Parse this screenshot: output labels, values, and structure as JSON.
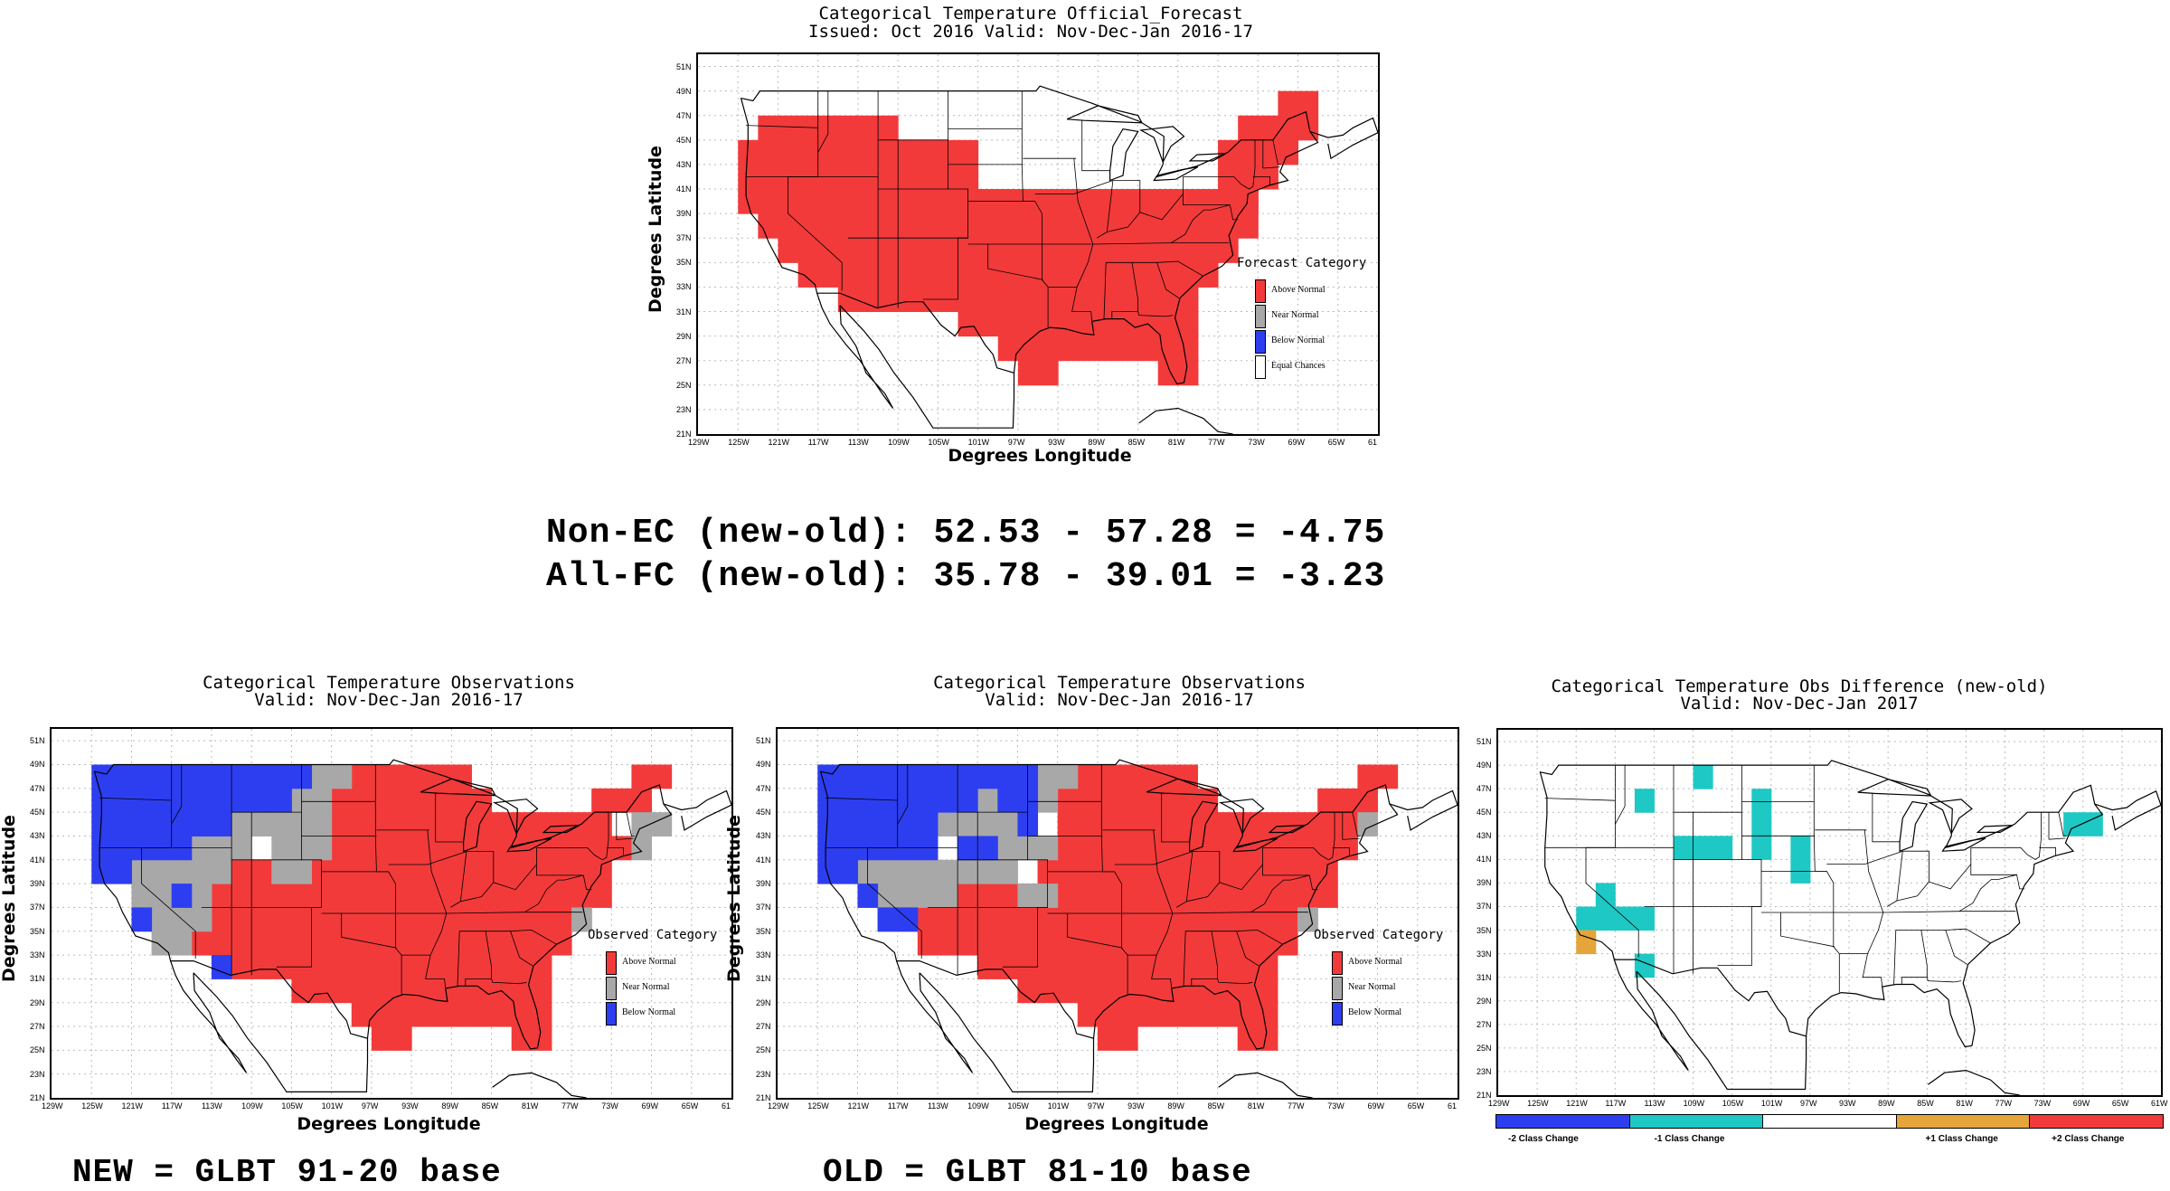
{
  "summary": {
    "line1": "Non-EC (new-old): 52.53 - 57.28 = -4.75",
    "line2": "All-FC (new-old): 35.78 - 39.01 = -3.23"
  },
  "footer": {
    "new_label": "NEW = GLBT 91-20 base",
    "old_label": "OLD = GLBT 81-10 base"
  },
  "axes": {
    "lat_ticks": [
      "51N",
      "49N",
      "47N",
      "45N",
      "43N",
      "41N",
      "39N",
      "37N",
      "35N",
      "33N",
      "31N",
      "29N",
      "27N",
      "25N",
      "23N",
      "21N"
    ],
    "lon_ticks": [
      "129W",
      "125W",
      "121W",
      "117W",
      "113W",
      "109W",
      "105W",
      "101W",
      "97W",
      "93W",
      "89W",
      "85W",
      "81W",
      "77W",
      "73W",
      "69W",
      "65W",
      "61"
    ],
    "lon_ticks_diff": [
      "129W",
      "125W",
      "121W",
      "117W",
      "113W",
      "109W",
      "105W",
      "101W",
      "97W",
      "93W",
      "89W",
      "85W",
      "81W",
      "77W",
      "73W",
      "69W",
      "65W",
      "61W"
    ]
  },
  "colors": {
    "above": "#f23a3a",
    "near": "#a8a8a8",
    "below": "#2d3ef0",
    "equal": "#ffffff",
    "minus1": "#1ec8c4",
    "plus1": "#e5a53a",
    "plus2": "#f23a3a",
    "minus2": "#2d3ef0"
  },
  "panels": {
    "forecast": {
      "title1": "Categorical Temperature Official_Forecast",
      "title2": "Issued: Oct 2016 Valid: Nov-Dec-Jan 2016-17",
      "ylabel": "Degrees Latitude",
      "xlabel": "Degrees Longitude",
      "legend_title": "Forecast Category",
      "legend": [
        {
          "label": "Above Normal",
          "color": "#f23a3a"
        },
        {
          "label": "Near Normal",
          "color": "#a8a8a8"
        },
        {
          "label": "Below Normal",
          "color": "#2d3ef0"
        },
        {
          "label": "Equal Chances",
          "color": "#ffffff"
        }
      ]
    },
    "obs_new": {
      "title1": "Categorical Temperature Observations",
      "title2": "Valid: Nov-Dec-Jan 2016-17",
      "ylabel": "Degrees Latitude",
      "xlabel": "Degrees Longitude",
      "legend_title": "Observed Category",
      "legend": [
        {
          "label": "Above Normal",
          "color": "#f23a3a"
        },
        {
          "label": "Near Normal",
          "color": "#a8a8a8"
        },
        {
          "label": "Below Normal",
          "color": "#2d3ef0"
        }
      ]
    },
    "obs_old": {
      "title1": "Categorical Temperature Observations",
      "title2": "Valid: Nov-Dec-Jan 2016-17",
      "ylabel": "Degrees Latitude",
      "xlabel": "Degrees Longitude",
      "legend_title": "Observed Category",
      "legend": [
        {
          "label": "Above Normal",
          "color": "#f23a3a"
        },
        {
          "label": "Near Normal",
          "color": "#a8a8a8"
        },
        {
          "label": "Below Normal",
          "color": "#2d3ef0"
        }
      ]
    },
    "diff": {
      "title1": "Categorical Temperature Obs Difference (new-old)",
      "title2": "Valid: Nov-Dec-Jan 2017",
      "colorbar": [
        {
          "label": "-2 Class Change",
          "color": "#2d3ef0"
        },
        {
          "label": "-1 Class Change",
          "color": "#1ec8c4"
        },
        {
          "label": "",
          "color": "#ffffff"
        },
        {
          "label": "+1 Class Change",
          "color": "#e5a53a"
        },
        {
          "label": "+2 Class Change",
          "color": "#f23a3a"
        }
      ]
    }
  }
}
